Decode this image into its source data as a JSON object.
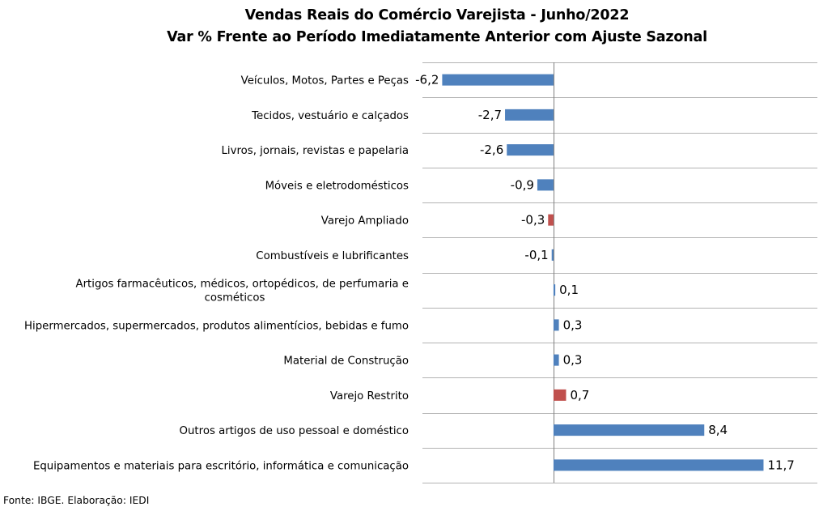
{
  "colors": {
    "bar_default": "#4f81bd",
    "bar_highlight": "#c0504d",
    "grid": "#b3b3b3",
    "axis": "#808080"
  },
  "chart_data": {
    "type": "bar",
    "orientation": "horizontal",
    "title": "Vendas Reais do Comércio Varejista - Junho/2022",
    "subtitle": "Var % Frente ao Período Imediatamente Anterior com Ajuste Sazonal",
    "xlim": [
      -7.3,
      14.7
    ],
    "grid": "horizontal separators between categories",
    "legend": "none",
    "categories": [
      [
        "Veículos, Motos, Partes e Peças"
      ],
      [
        "Tecidos, vestuário e calçados"
      ],
      [
        "Livros, jornais, revistas e papelaria"
      ],
      [
        "Móveis e eletrodomésticos"
      ],
      [
        "Varejo Ampliado"
      ],
      [
        "Combustíveis e lubrificantes"
      ],
      [
        "Artigos farmacêuticos, médicos, ortopédicos, de perfumaria e",
        "cosméticos"
      ],
      [
        "Hipermercados, supermercados, produtos alimentícios, bebidas e fumo"
      ],
      [
        "Material de Construção"
      ],
      [
        "Varejo Restrito"
      ],
      [
        "Outros artigos de uso pessoal e doméstico"
      ],
      [
        "Equipamentos e materiais para escritório, informática e comunicação"
      ]
    ],
    "values": [
      -6.2,
      -2.7,
      -2.6,
      -0.9,
      -0.3,
      -0.1,
      0.1,
      0.3,
      0.3,
      0.7,
      8.4,
      11.7
    ],
    "value_labels": [
      "-6,2",
      "-2,7",
      "-2,6",
      "-0,9",
      "-0,3",
      "-0,1",
      "0,1",
      "0,3",
      "0,3",
      "0,7",
      "8,4",
      "11,7"
    ],
    "highlighted": [
      false,
      false,
      false,
      false,
      true,
      false,
      false,
      false,
      false,
      true,
      false,
      false
    ]
  },
  "footer": {
    "source": "Fonte: IBGE. Elaboração: IEDI"
  }
}
